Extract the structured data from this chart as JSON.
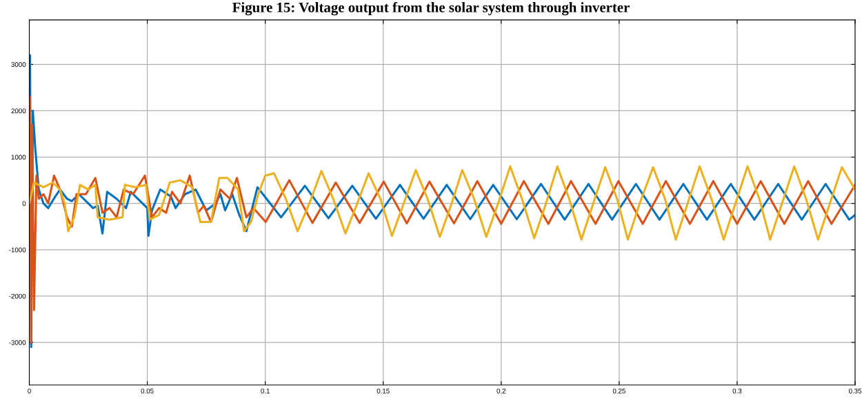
{
  "chart_data": {
    "type": "line",
    "title": "Figure 15: Voltage output from the solar system through inverter",
    "xlim": [
      0,
      0.35
    ],
    "xticks": [
      0,
      0.05,
      0.1,
      0.15,
      0.2,
      0.25,
      0.3,
      0.35
    ],
    "ylim": [
      -3920,
      3960
    ],
    "yticks": [
      -3000,
      -2000,
      -1000,
      0,
      1000,
      2000,
      3000
    ],
    "grid": true,
    "series": [
      {
        "color": "#0072bd",
        "x": [
          0,
          0.0003,
          0.0008,
          0.0015,
          0.0025,
          0.004,
          0.006,
          0.008,
          0.011,
          0.013,
          0.016,
          0.018,
          0.021,
          0.024,
          0.027,
          0.029,
          0.031,
          0.033,
          0.037,
          0.041,
          0.043,
          0.047,
          0.05,
          0.0505,
          0.052,
          0.0555,
          0.06,
          0.062,
          0.066,
          0.0705,
          0.075,
          0.079,
          0.081,
          0.083,
          0.086,
          0.089,
          0.092,
          0.0967,
          0.1067,
          0.1168,
          0.1268,
          0.1369,
          0.1469,
          0.1571,
          0.1671,
          0.1769,
          0.1869,
          0.1966,
          0.2066,
          0.2169,
          0.2269,
          0.237,
          0.247,
          0.2571,
          0.2671,
          0.2772,
          0.2872,
          0.2973,
          0.3073,
          0.3174,
          0.3274,
          0.3375,
          0.3475,
          0.35
        ],
        "values": [
          0,
          3200,
          -3100,
          2000,
          1200,
          300,
          0,
          -100,
          150,
          300,
          100,
          50,
          200,
          50,
          -100,
          -50,
          -650,
          250,
          100,
          -100,
          250,
          50,
          -100,
          -700,
          -150,
          300,
          150,
          -100,
          200,
          300,
          -150,
          0,
          200,
          -150,
          200,
          -250,
          -600,
          350,
          -300,
          380,
          -320,
          380,
          -330,
          400,
          -330,
          400,
          -340,
          400,
          -340,
          420,
          -350,
          420,
          -350,
          420,
          -350,
          420,
          -350,
          420,
          -350,
          420,
          -350,
          420,
          -350,
          -250
        ]
      },
      {
        "color": "#d95319",
        "x": [
          0,
          0.0003,
          0.0008,
          0.0012,
          0.002,
          0.003,
          0.004,
          0.006,
          0.008,
          0.0105,
          0.013,
          0.016,
          0.018,
          0.02,
          0.024,
          0.028,
          0.031,
          0.034,
          0.037,
          0.04,
          0.044,
          0.049,
          0.052,
          0.055,
          0.058,
          0.0605,
          0.064,
          0.068,
          0.0715,
          0.074,
          0.077,
          0.081,
          0.085,
          0.088,
          0.092,
          0.095,
          0.1002,
          0.1102,
          0.12,
          0.1299,
          0.14,
          0.1502,
          0.16,
          0.1696,
          0.18,
          0.1899,
          0.2,
          0.2096,
          0.22,
          0.2296,
          0.24,
          0.2497,
          0.26,
          0.2698,
          0.28,
          0.2899,
          0.3,
          0.31,
          0.32,
          0.3301,
          0.34,
          0.35
        ],
        "values": [
          0,
          2300,
          -3000,
          1700,
          -2300,
          600,
          100,
          200,
          0,
          600,
          300,
          -300,
          -500,
          200,
          200,
          550,
          -200,
          -100,
          -300,
          300,
          200,
          600,
          -300,
          -100,
          -200,
          250,
          0,
          600,
          -200,
          -50,
          -400,
          300,
          100,
          550,
          -300,
          -100,
          -400,
          500,
          -420,
          450,
          -420,
          470,
          -430,
          470,
          -430,
          480,
          -440,
          480,
          -440,
          480,
          -440,
          480,
          -440,
          480,
          -440,
          480,
          -440,
          480,
          -440,
          480,
          -440,
          400
        ]
      },
      {
        "color": "#edb120",
        "x": [
          0,
          0.002,
          0.006,
          0.01,
          0.013,
          0.015,
          0.0165,
          0.019,
          0.0215,
          0.025,
          0.028,
          0.029,
          0.034,
          0.0395,
          0.0405,
          0.045,
          0.0495,
          0.051,
          0.055,
          0.0595,
          0.064,
          0.069,
          0.0725,
          0.077,
          0.0805,
          0.084,
          0.0885,
          0.091,
          0.094,
          0.097,
          0.1,
          0.1037,
          0.1087,
          0.1137,
          0.1187,
          0.1238,
          0.1288,
          0.134,
          0.139,
          0.1438,
          0.1488,
          0.1537,
          0.1587,
          0.1638,
          0.1688,
          0.174,
          0.179,
          0.1835,
          0.1885,
          0.1937,
          0.1987,
          0.2038,
          0.2088,
          0.214,
          0.219,
          0.2238,
          0.2288,
          0.234,
          0.239,
          0.2441,
          0.2491,
          0.2537,
          0.2587,
          0.2644,
          0.2694,
          0.274,
          0.279,
          0.2841,
          0.2891,
          0.2943,
          0.2993,
          0.3044,
          0.3094,
          0.314,
          0.319,
          0.3242,
          0.3292,
          0.3343,
          0.3393,
          0.3444,
          0.35
        ],
        "values": [
          0,
          450,
          350,
          450,
          300,
          0,
          -600,
          -300,
          400,
          300,
          400,
          -300,
          -350,
          -300,
          400,
          350,
          400,
          -350,
          -250,
          450,
          500,
          350,
          -400,
          -400,
          550,
          550,
          300,
          -600,
          -400,
          200,
          600,
          650,
          100,
          -600,
          0,
          700,
          100,
          -650,
          0,
          650,
          100,
          -700,
          0,
          720,
          100,
          -720,
          0,
          720,
          100,
          -720,
          0,
          800,
          100,
          -750,
          0,
          800,
          100,
          -780,
          0,
          780,
          100,
          -780,
          0,
          780,
          100,
          -780,
          0,
          800,
          100,
          -780,
          0,
          800,
          100,
          -780,
          0,
          800,
          100,
          -780,
          0,
          780,
          300
        ]
      }
    ]
  }
}
